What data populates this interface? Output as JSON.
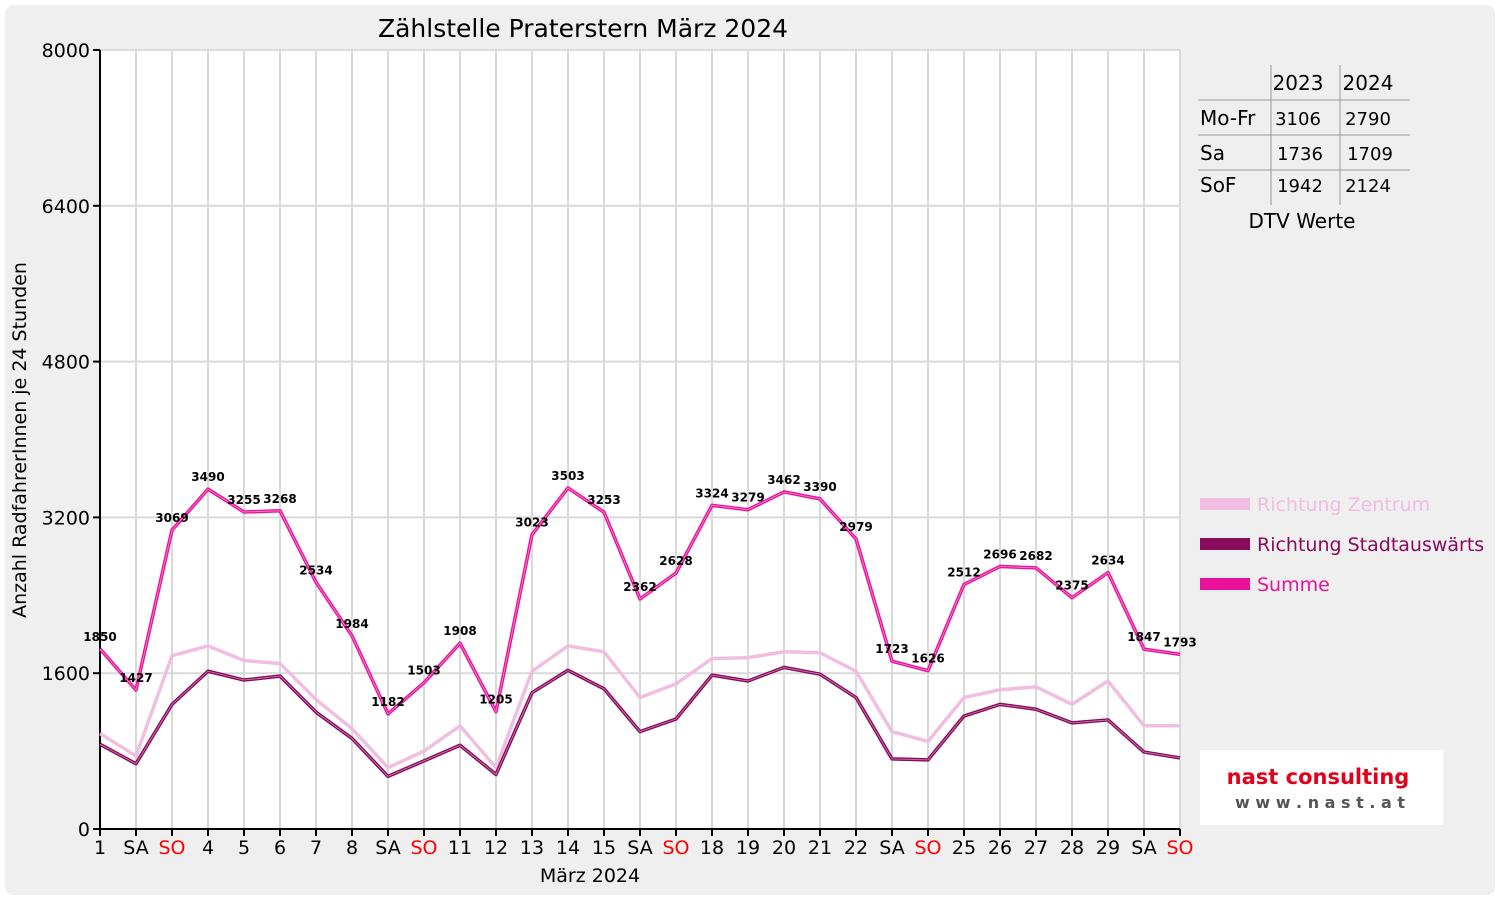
{
  "chart_data": {
    "type": "line",
    "title": "Zählstelle Praterstern März 2024",
    "xlabel": "März 2024",
    "ylabel": "Anzahl RadfahrerInnen je 24 Stunden",
    "ylim": [
      0,
      8000
    ],
    "yticks": [
      0,
      1600,
      3200,
      4800,
      6400,
      8000
    ],
    "grid": true,
    "legend_position": "right",
    "categories": [
      "1",
      "SA",
      "SO",
      "4",
      "5",
      "6",
      "7",
      "8",
      "SA",
      "SO",
      "11",
      "12",
      "13",
      "14",
      "15",
      "SA",
      "SO",
      "18",
      "19",
      "20",
      "21",
      "22",
      "SA",
      "SO",
      "25",
      "26",
      "27",
      "28",
      "29",
      "SA",
      "SO"
    ],
    "weekend_categories": [
      "SO"
    ],
    "series": [
      {
        "name": "Richtung Zentrum",
        "color": "#f0bee0",
        "values": [
          980,
          750,
          1780,
          1880,
          1730,
          1700,
          1330,
          1030,
          630,
          800,
          1060,
          630,
          1620,
          1880,
          1820,
          1350,
          1490,
          1750,
          1760,
          1820,
          1810,
          1620,
          1000,
          900,
          1350,
          1430,
          1460,
          1280,
          1520,
          1060,
          1060
        ]
      },
      {
        "name": "Richtung Stadtauswärts",
        "color": "#8a0a5e",
        "values": [
          870,
          670,
          1280,
          1620,
          1530,
          1570,
          1200,
          930,
          540,
          700,
          860,
          560,
          1400,
          1630,
          1440,
          1000,
          1130,
          1580,
          1520,
          1660,
          1590,
          1350,
          720,
          710,
          1160,
          1280,
          1230,
          1090,
          1120,
          790,
          730
        ]
      },
      {
        "name": "Summe",
        "color": "#e8139a",
        "values": [
          1850,
          1427,
          3069,
          3490,
          3255,
          3268,
          2534,
          1984,
          1182,
          1503,
          1908,
          1205,
          3023,
          3503,
          3253,
          2362,
          2628,
          3324,
          3279,
          3462,
          3390,
          2979,
          1723,
          1626,
          2512,
          2696,
          2682,
          2375,
          2634,
          1847,
          1793
        ]
      }
    ]
  },
  "dtv_table": {
    "caption": "DTV Werte",
    "headers": [
      "",
      "2023",
      "2024"
    ],
    "rows": [
      [
        "Mo-Fr",
        "3106",
        "2790"
      ],
      [
        "Sa",
        "1736",
        "1709"
      ],
      [
        "SoF",
        "1942",
        "2124"
      ]
    ]
  },
  "logo": {
    "brand": "nast consulting",
    "url": "w w w . n a s t . a t"
  },
  "colors": {
    "background_frame": "#efefef",
    "plot_background": "#ffffff",
    "grid": "#d9d9d9",
    "weekend_label": "#ff0000",
    "logo_red": "#e2001a",
    "logo_gray": "#555555"
  }
}
